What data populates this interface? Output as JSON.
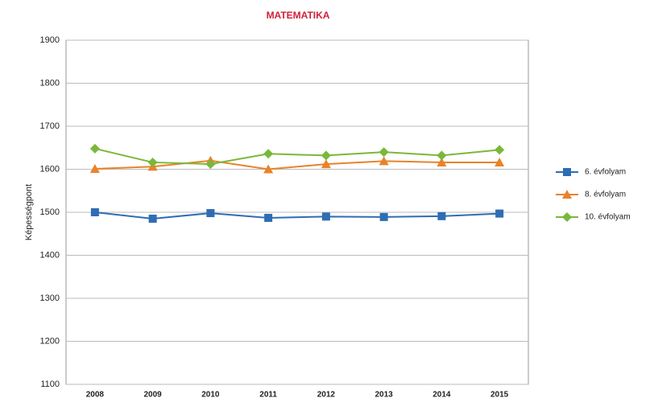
{
  "chart_data": {
    "type": "line",
    "title": "MATEMATIKA",
    "y_label": "Képességpont",
    "categories": [
      "2008",
      "2009",
      "2010",
      "2011",
      "2012",
      "2013",
      "2014",
      "2015"
    ],
    "series": [
      {
        "name": "6. évfolyam",
        "color": "#2e6db4",
        "marker": "square",
        "values": [
          1500,
          1485,
          1498,
          1487,
          1490,
          1489,
          1491,
          1497
        ]
      },
      {
        "name": "8. évfolyam",
        "color": "#e8832a",
        "marker": "triangle",
        "values": [
          1601,
          1606,
          1620,
          1600,
          1612,
          1619,
          1616,
          1616
        ]
      },
      {
        "name": "10. évfolyam",
        "color": "#7ab83a",
        "marker": "diamond",
        "values": [
          1648,
          1616,
          1612,
          1636,
          1632,
          1640,
          1632,
          1645
        ]
      }
    ],
    "ylim": [
      1100,
      1900
    ],
    "yticks": [
      1100,
      1200,
      1300,
      1400,
      1500,
      1600,
      1700,
      1800,
      1900
    ],
    "grid": true,
    "legend": "right"
  }
}
